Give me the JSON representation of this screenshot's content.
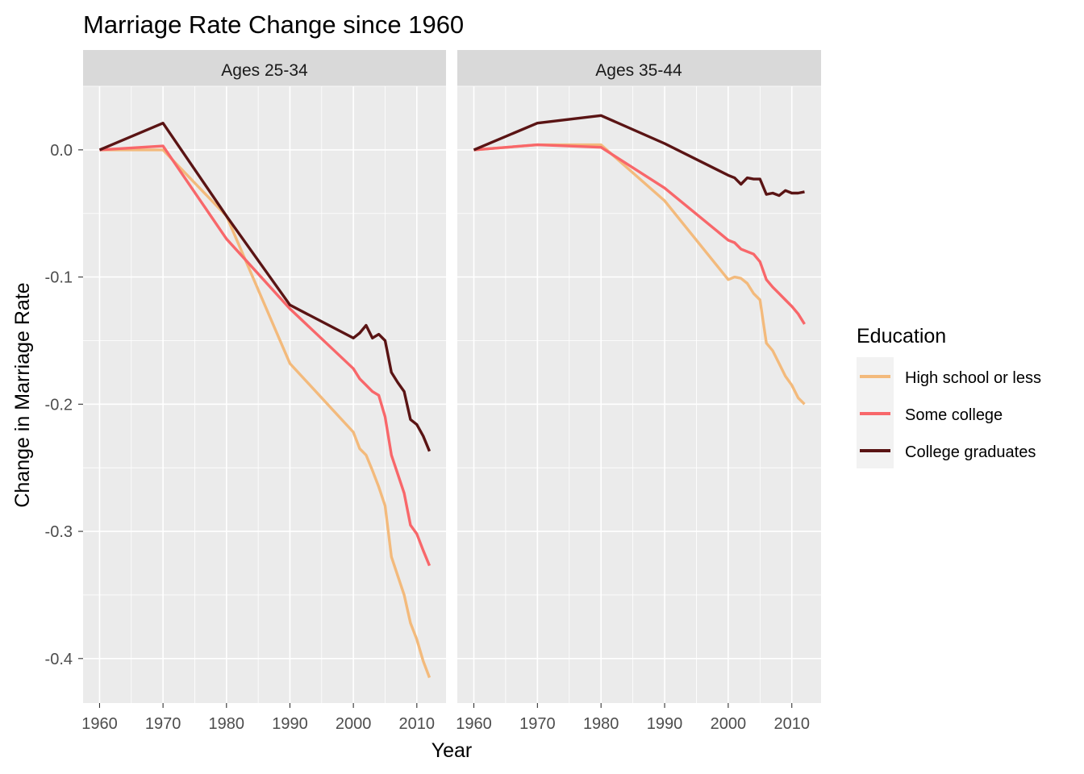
{
  "chart_data": {
    "type": "line",
    "title": "Marriage Rate Change since 1960",
    "xlabel": "Year",
    "ylabel": "Change in Marriage Rate",
    "xlim": [
      1957.4,
      2014.6
    ],
    "ylim": [
      -0.435,
      0.05
    ],
    "x_ticks": [
      1960,
      1970,
      1980,
      1990,
      2000,
      2010
    ],
    "y_ticks": [
      0.0,
      -0.1,
      -0.2,
      -0.3,
      -0.4
    ],
    "y_tick_labels": [
      "0.0",
      "-0.1",
      "-0.2",
      "-0.3",
      "-0.4"
    ],
    "grid": true,
    "legend": {
      "title": "Education",
      "position": "right",
      "entries": [
        "High school or less",
        "Some college",
        "College graduates"
      ]
    },
    "colors": {
      "High school or less": "#F3BA7C",
      "Some college": "#F8676A",
      "College graduates": "#5A1414"
    },
    "panels": [
      {
        "label": "Ages 25-34",
        "series": [
          {
            "name": "High school or less",
            "x": [
              1960,
              1970,
              1980,
              1990,
              2000,
              2001,
              2002,
              2003,
              2004,
              2005,
              2006,
              2007,
              2008,
              2009,
              2010,
              2011,
              2012
            ],
            "y": [
              0.0,
              0.0,
              -0.052,
              -0.168,
              -0.222,
              -0.235,
              -0.24,
              -0.252,
              -0.265,
              -0.28,
              -0.32,
              -0.335,
              -0.35,
              -0.372,
              -0.385,
              -0.402,
              -0.415
            ]
          },
          {
            "name": "Some college",
            "x": [
              1960,
              1970,
              1980,
              1990,
              2000,
              2001,
              2002,
              2003,
              2004,
              2005,
              2006,
              2007,
              2008,
              2009,
              2010,
              2011,
              2012
            ],
            "y": [
              0.0,
              0.003,
              -0.07,
              -0.125,
              -0.172,
              -0.18,
              -0.185,
              -0.19,
              -0.193,
              -0.21,
              -0.24,
              -0.255,
              -0.27,
              -0.295,
              -0.302,
              -0.315,
              -0.327
            ]
          },
          {
            "name": "College graduates",
            "x": [
              1960,
              1970,
              1980,
              1990,
              2000,
              2001,
              2002,
              2003,
              2004,
              2005,
              2006,
              2007,
              2008,
              2009,
              2010,
              2011,
              2012
            ],
            "y": [
              0.0,
              0.021,
              -0.052,
              -0.122,
              -0.148,
              -0.144,
              -0.138,
              -0.148,
              -0.145,
              -0.15,
              -0.175,
              -0.183,
              -0.19,
              -0.212,
              -0.216,
              -0.225,
              -0.237
            ]
          }
        ]
      },
      {
        "label": "Ages 35-44",
        "series": [
          {
            "name": "High school or less",
            "x": [
              1960,
              1970,
              1980,
              1990,
              2000,
              2001,
              2002,
              2003,
              2004,
              2005,
              2006,
              2007,
              2008,
              2009,
              2010,
              2011,
              2012
            ],
            "y": [
              0.0,
              0.004,
              0.004,
              -0.04,
              -0.102,
              -0.1,
              -0.101,
              -0.105,
              -0.113,
              -0.118,
              -0.152,
              -0.158,
              -0.168,
              -0.178,
              -0.185,
              -0.195,
              -0.2
            ]
          },
          {
            "name": "Some college",
            "x": [
              1960,
              1970,
              1980,
              1990,
              2000,
              2001,
              2002,
              2003,
              2004,
              2005,
              2006,
              2007,
              2008,
              2009,
              2010,
              2011,
              2012
            ],
            "y": [
              0.0,
              0.004,
              0.002,
              -0.03,
              -0.071,
              -0.073,
              -0.078,
              -0.08,
              -0.082,
              -0.088,
              -0.102,
              -0.108,
              -0.113,
              -0.118,
              -0.123,
              -0.129,
              -0.137
            ]
          },
          {
            "name": "College graduates",
            "x": [
              1960,
              1970,
              1980,
              1990,
              2000,
              2001,
              2002,
              2003,
              2004,
              2005,
              2006,
              2007,
              2008,
              2009,
              2010,
              2011,
              2012
            ],
            "y": [
              0.0,
              0.021,
              0.027,
              0.005,
              -0.02,
              -0.022,
              -0.027,
              -0.022,
              -0.023,
              -0.023,
              -0.035,
              -0.034,
              -0.036,
              -0.032,
              -0.034,
              -0.034,
              -0.033
            ]
          }
        ]
      }
    ]
  }
}
